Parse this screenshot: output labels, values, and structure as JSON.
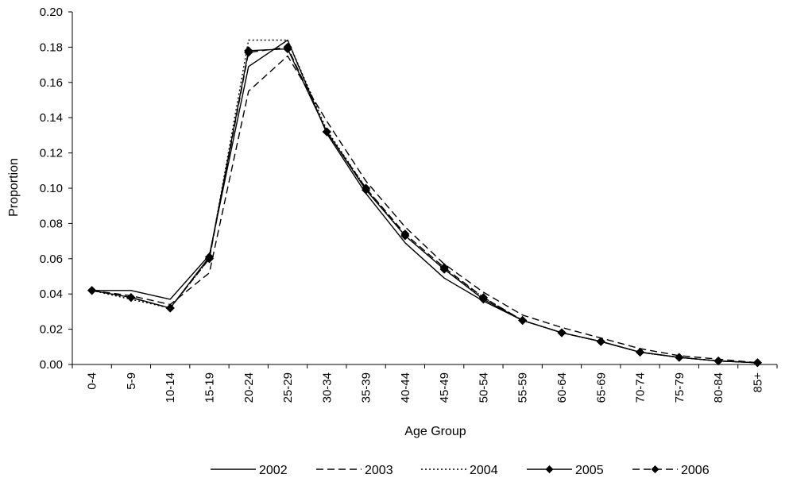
{
  "chart_data": {
    "type": "line",
    "title": "",
    "xlabel": "Age Group",
    "ylabel": "Proportion",
    "ylim": [
      0,
      0.2
    ],
    "y_ticks": [
      "0.00",
      "0.02",
      "0.04",
      "0.06",
      "0.08",
      "0.10",
      "0.12",
      "0.14",
      "0.16",
      "0.18",
      "0.20"
    ],
    "grid": false,
    "legend_position": "bottom",
    "categories": [
      "0-4",
      "5-9",
      "10-14",
      "15-19",
      "20-24",
      "25-29",
      "30-34",
      "35-39",
      "40-44",
      "45-49",
      "50-54",
      "55-59",
      "60-64",
      "65-69",
      "70-74",
      "75-79",
      "80-84",
      "85+"
    ],
    "series": [
      {
        "name": "2002",
        "style": "solid",
        "marker": "none",
        "values": [
          0.042,
          0.042,
          0.037,
          0.062,
          0.169,
          0.184,
          0.131,
          0.097,
          0.069,
          0.049,
          0.036,
          0.025,
          0.018,
          0.013,
          0.007,
          0.004,
          0.002,
          0.001
        ]
      },
      {
        "name": "2003",
        "style": "dashed",
        "marker": "none",
        "values": [
          0.042,
          0.039,
          0.034,
          0.052,
          0.155,
          0.175,
          0.138,
          0.104,
          0.078,
          0.057,
          0.041,
          0.028,
          0.021,
          0.015,
          0.009,
          0.005,
          0.003,
          0.001
        ]
      },
      {
        "name": "2004",
        "style": "dotted",
        "marker": "none",
        "values": [
          0.042,
          0.037,
          0.032,
          0.06,
          0.184,
          0.184,
          0.133,
          0.1,
          0.073,
          0.054,
          0.038,
          0.025,
          0.018,
          0.013,
          0.007,
          0.004,
          0.002,
          0.001
        ]
      },
      {
        "name": "2005",
        "style": "solid",
        "marker": "diamond",
        "values": [
          0.042,
          0.038,
          0.032,
          0.061,
          0.178,
          0.179,
          0.132,
          0.099,
          0.073,
          0.054,
          0.037,
          0.025,
          0.018,
          0.013,
          0.007,
          0.004,
          0.002,
          0.001
        ]
      },
      {
        "name": "2006",
        "style": "dashed",
        "marker": "diamond",
        "values": [
          0.042,
          0.038,
          0.032,
          0.06,
          0.177,
          0.18,
          0.132,
          0.1,
          0.074,
          0.055,
          0.038,
          0.025,
          0.018,
          0.013,
          0.007,
          0.004,
          0.002,
          0.001
        ]
      }
    ]
  }
}
